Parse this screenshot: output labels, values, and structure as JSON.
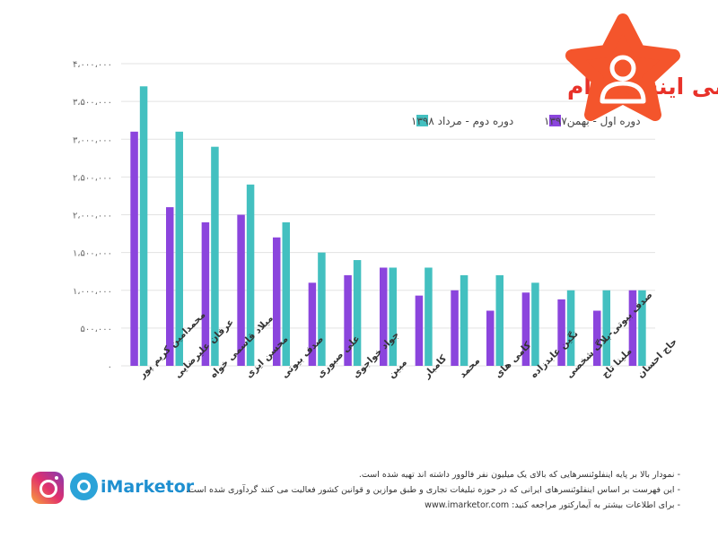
{
  "chart_data": {
    "type": "bar",
    "title": "برترین اینفلوئنسرهای ایرانی اینستاگرام",
    "categories": [
      "محمدامین کریم پور",
      "عرفان علیرضایی",
      "میلاد قاسمی خواه",
      "محسن ایزی",
      "صدف بیوتی",
      "علی صبوری",
      "جواد خواجوی",
      "مبین",
      "کامبار",
      "محمد",
      "کامی های",
      "نگین عابدزاده",
      "صدف بیوتی-بلاگ شخصی",
      "ملینا تاج",
      "حاج احسان"
    ],
    "series": [
      {
        "name": "دوره اول - بهمن۱۳۹۷",
        "color": "#8b45dd",
        "values": [
          3100000,
          2100000,
          1900000,
          2000000,
          1700000,
          1100000,
          1200000,
          1300000,
          930000,
          1000000,
          730000,
          970000,
          880000,
          730000,
          1000000
        ]
      },
      {
        "name": "دوره دوم - مرداد ۱۳۹۸",
        "color": "#43c0c0",
        "values": [
          3700000,
          3100000,
          2900000,
          2400000,
          1900000,
          1500000,
          1400000,
          1300000,
          1300000,
          1200000,
          1200000,
          1100000,
          1000000,
          1000000,
          1000000
        ]
      }
    ],
    "yticks": [
      "۰",
      "۵۰۰،۰۰۰",
      "۱،۰۰۰،۰۰۰",
      "۱،۵۰۰،۰۰۰",
      "۲،۰۰۰،۰۰۰",
      "۲،۵۰۰،۰۰۰",
      "۳،۰۰۰،۰۰۰",
      "۳،۵۰۰،۰۰۰",
      "۴،۰۰۰،۰۰۰"
    ],
    "ylim": [
      0,
      4000000
    ],
    "grid": true,
    "legend_position": "top"
  },
  "colors": {
    "title": "#e8322a",
    "logo": "#f4552c",
    "brand": "#1e8fd0",
    "grid": "#e3e3e3"
  },
  "footer": {
    "brand": "iMarketor",
    "notes": [
      "- نمودار بالا بر پایه اینفلوئنسرهایی که بالای یک میلیون نفر فالوور داشته اند تهیه شده است.",
      "- این فهرست بر اساس اینفلوئنسرهای ایرانی که در حوزه تبلیغات تجاری و طبق موازین و قوانین کشور فعالیت می کنند گردآوری شده است.",
      "- برای اطلاعات بیشتر به آیمارکتور مراجعه کنید: www.imarketor.com"
    ]
  },
  "icons": {
    "logo": "star-person-icon",
    "instagram": "instagram-icon",
    "imarketor": "imarketor-eye-icon"
  }
}
